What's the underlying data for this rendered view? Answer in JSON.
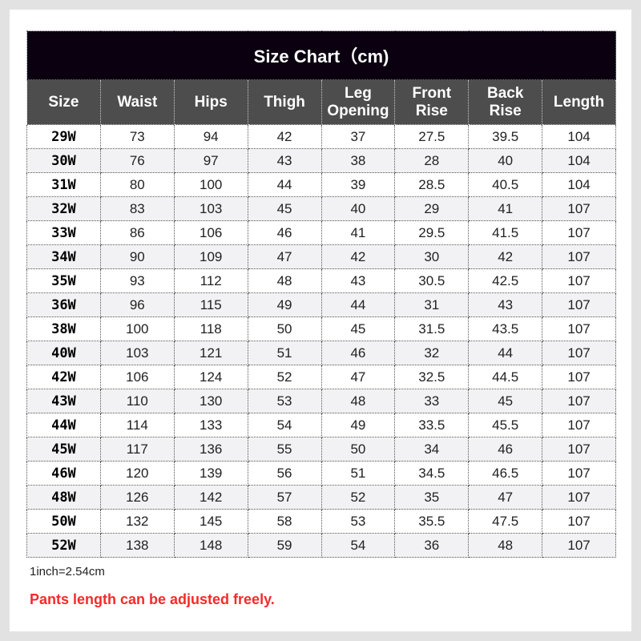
{
  "title": "Size Chart（cm)",
  "headers": [
    "Size",
    "Waist",
    "Hips",
    "Thigh",
    "Leg\nOpening",
    "Front\nRise",
    "Back\nRise",
    "Length"
  ],
  "rows": [
    [
      "29W",
      "73",
      "94",
      "42",
      "37",
      "27.5",
      "39.5",
      "104"
    ],
    [
      "30W",
      "76",
      "97",
      "43",
      "38",
      "28",
      "40",
      "104"
    ],
    [
      "31W",
      "80",
      "100",
      "44",
      "39",
      "28.5",
      "40.5",
      "104"
    ],
    [
      "32W",
      "83",
      "103",
      "45",
      "40",
      "29",
      "41",
      "107"
    ],
    [
      "33W",
      "86",
      "106",
      "46",
      "41",
      "29.5",
      "41.5",
      "107"
    ],
    [
      "34W",
      "90",
      "109",
      "47",
      "42",
      "30",
      "42",
      "107"
    ],
    [
      "35W",
      "93",
      "112",
      "48",
      "43",
      "30.5",
      "42.5",
      "107"
    ],
    [
      "36W",
      "96",
      "115",
      "49",
      "44",
      "31",
      "43",
      "107"
    ],
    [
      "38W",
      "100",
      "118",
      "50",
      "45",
      "31.5",
      "43.5",
      "107"
    ],
    [
      "40W",
      "103",
      "121",
      "51",
      "46",
      "32",
      "44",
      "107"
    ],
    [
      "42W",
      "106",
      "124",
      "52",
      "47",
      "32.5",
      "44.5",
      "107"
    ],
    [
      "43W",
      "110",
      "130",
      "53",
      "48",
      "33",
      "45",
      "107"
    ],
    [
      "44W",
      "114",
      "133",
      "54",
      "49",
      "33.5",
      "45.5",
      "107"
    ],
    [
      "45W",
      "117",
      "136",
      "55",
      "50",
      "34",
      "46",
      "107"
    ],
    [
      "46W",
      "120",
      "139",
      "56",
      "51",
      "34.5",
      "46.5",
      "107"
    ],
    [
      "48W",
      "126",
      "142",
      "57",
      "52",
      "35",
      "47",
      "107"
    ],
    [
      "50W",
      "132",
      "145",
      "58",
      "53",
      "35.5",
      "47.5",
      "107"
    ],
    [
      "52W",
      "138",
      "148",
      "59",
      "54",
      "36",
      "48",
      "107"
    ]
  ],
  "note": "1inch=2.54cm",
  "warning": "Pants length can be adjusted freely.",
  "colors": {
    "title_bg": "#0b0010",
    "header_bg": "#4d4d4d",
    "warning": "#f52a2a",
    "alt_row": "#f2f2f4"
  }
}
